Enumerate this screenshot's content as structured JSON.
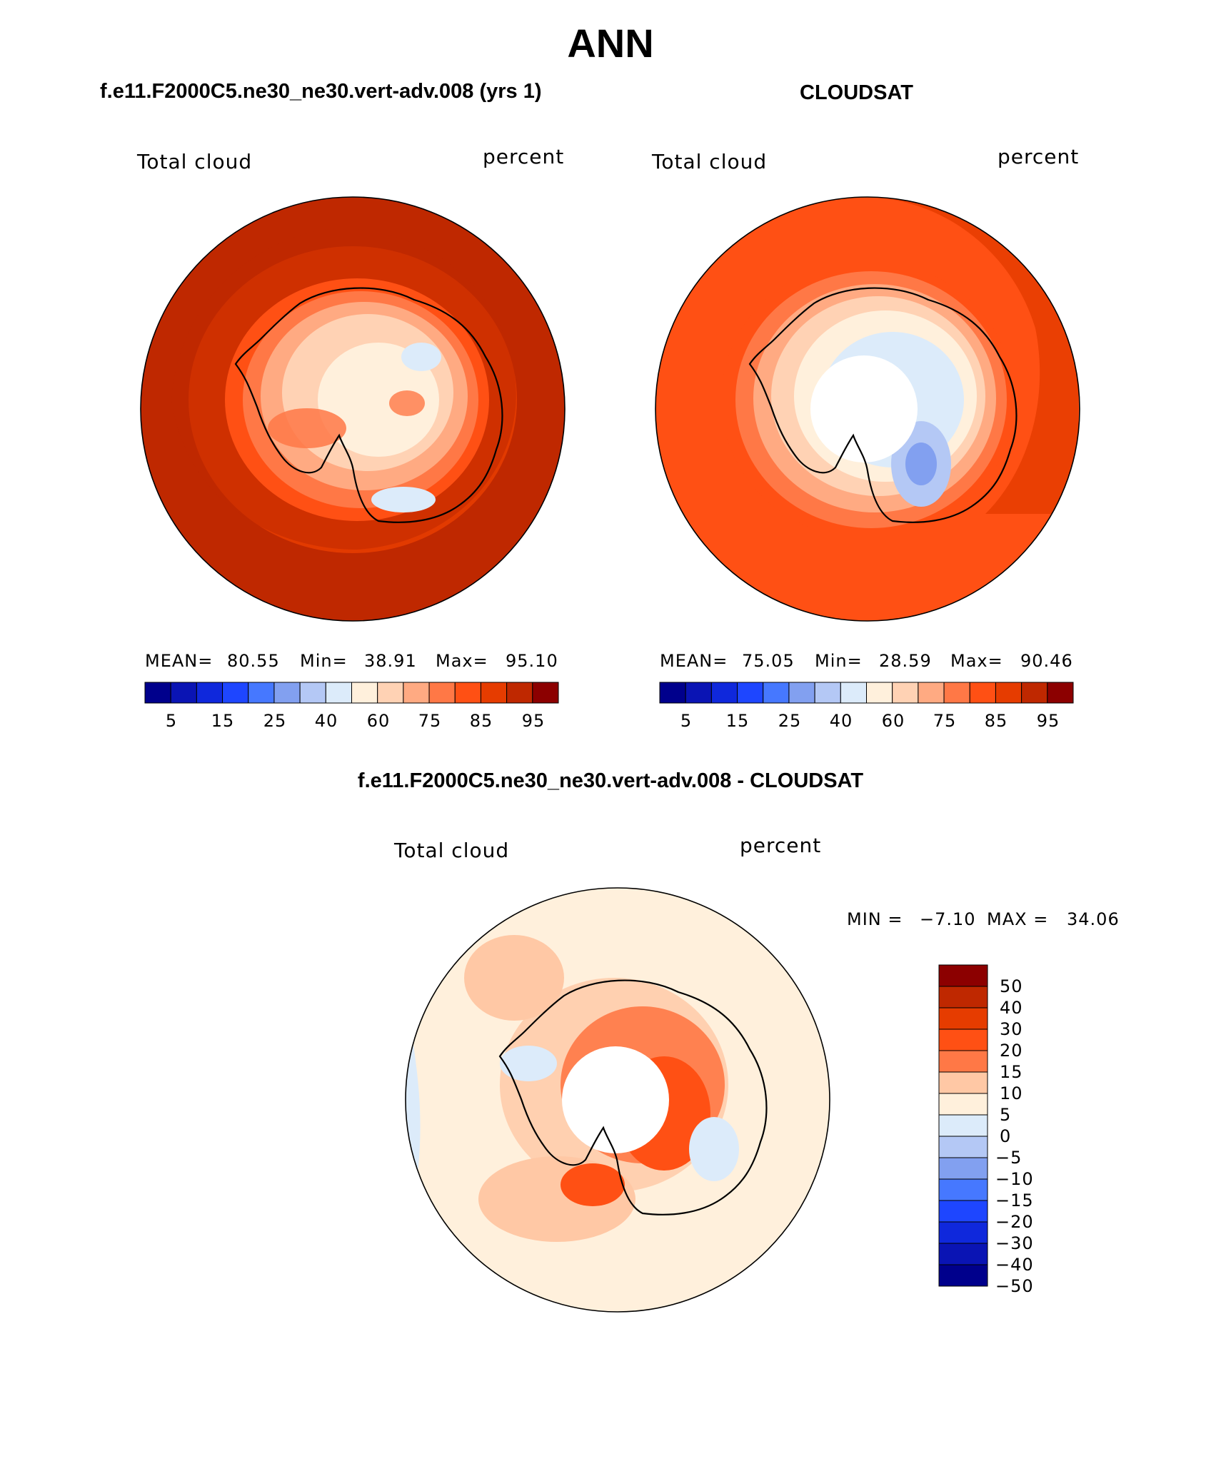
{
  "figure": {
    "title": "ANN",
    "case_title": "f.e11.F2000C5.ne30_ne30.vert-adv.008 (yrs 1)",
    "obs_title": "CLOUDSAT",
    "diff_title": "f.e11.F2000C5.ne30_ne30.vert-adv.008 - CLOUDSAT"
  },
  "panels": {
    "model": {
      "variable": "Total cloud",
      "units": "percent",
      "mean_label": "MEAN=",
      "mean_value": "80.55",
      "min_label": "Min=",
      "min_value": "38.91",
      "max_label": "Max=",
      "max_value": "95.10"
    },
    "obs": {
      "variable": "Total cloud",
      "units": "percent",
      "mean_label": "MEAN=",
      "mean_value": "75.05",
      "min_label": "Min=",
      "min_value": "28.59",
      "max_label": "Max=",
      "max_value": "90.46"
    },
    "diff": {
      "variable": "Total cloud",
      "units": "percent",
      "min_label": "MIN =",
      "min_value": "−7.10",
      "max_label": "MAX =",
      "max_value": "34.06"
    }
  },
  "colorbar_abs": {
    "levels": [
      "5",
      "15",
      "25",
      "40",
      "60",
      "75",
      "85",
      "95"
    ],
    "colors": [
      "#00008c",
      "#0a14b4",
      "#0f28dc",
      "#1e46ff",
      "#4678ff",
      "#82a0f0",
      "#b4c8f5",
      "#dcebfa",
      "#fff0dc",
      "#ffd2b4",
      "#ffaa82",
      "#ff7846",
      "#ff5014",
      "#e63c00",
      "#bf2800",
      "#8c0000"
    ]
  },
  "colorbar_diff": {
    "levels": [
      "50",
      "40",
      "30",
      "20",
      "15",
      "10",
      "5",
      "0",
      "−5",
      "−10",
      "−15",
      "−20",
      "−30",
      "−40",
      "−50"
    ],
    "colors": [
      "#8c0000",
      "#bf2800",
      "#e63c00",
      "#ff5014",
      "#ff7846",
      "#ffc8a5",
      "#fff0dc",
      "#dcebfa",
      "#b4c8f5",
      "#82a0f0",
      "#4678ff",
      "#1e46ff",
      "#0f28dc",
      "#0a14b4",
      "#00008c"
    ]
  }
}
